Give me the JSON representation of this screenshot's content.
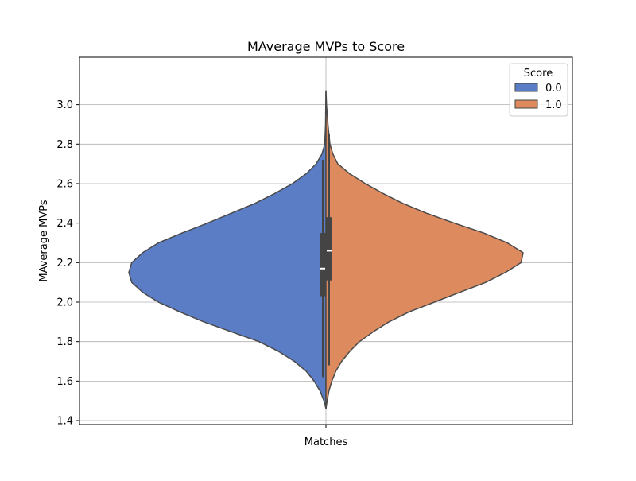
{
  "chart_data": {
    "type": "violin",
    "title": "MAverage MVPs to Score",
    "xlabel": "",
    "ylabel": "MAverage MVPs",
    "categories": [
      "Matches"
    ],
    "ylim": [
      1.38,
      3.24
    ],
    "yticks": [
      1.4,
      1.6,
      1.8,
      2.0,
      2.2,
      2.4,
      2.6,
      2.8,
      3.0
    ],
    "ytick_labels": [
      "1.4",
      "1.6",
      "1.8",
      "2.0",
      "2.2",
      "2.4",
      "2.6",
      "2.8",
      "3.0"
    ],
    "grid": true,
    "split": true,
    "legend": {
      "title": "Score",
      "placement": "top-right"
    },
    "series": [
      {
        "name": "0.0",
        "color": "#5a7dc5",
        "side": "left",
        "density_profile": [
          [
            1.46,
            0.0
          ],
          [
            1.5,
            0.01
          ],
          [
            1.55,
            0.03
          ],
          [
            1.6,
            0.06
          ],
          [
            1.65,
            0.1
          ],
          [
            1.7,
            0.16
          ],
          [
            1.75,
            0.24
          ],
          [
            1.8,
            0.34
          ],
          [
            1.85,
            0.48
          ],
          [
            1.9,
            0.62
          ],
          [
            1.95,
            0.74
          ],
          [
            2.0,
            0.85
          ],
          [
            2.05,
            0.93
          ],
          [
            2.1,
            0.985
          ],
          [
            2.15,
            1.0
          ],
          [
            2.2,
            0.985
          ],
          [
            2.25,
            0.93
          ],
          [
            2.3,
            0.85
          ],
          [
            2.35,
            0.73
          ],
          [
            2.4,
            0.6
          ],
          [
            2.45,
            0.48
          ],
          [
            2.5,
            0.36
          ],
          [
            2.55,
            0.26
          ],
          [
            2.6,
            0.17
          ],
          [
            2.65,
            0.1
          ],
          [
            2.7,
            0.05
          ],
          [
            2.75,
            0.02
          ],
          [
            2.8,
            0.006
          ],
          [
            2.9,
            0.002
          ],
          [
            3.07,
            0.0
          ]
        ],
        "box": {
          "q1": 2.03,
          "median": 2.17,
          "q3": 2.35,
          "whisker_low": 1.62,
          "whisker_high": 2.72
        }
      },
      {
        "name": "1.0",
        "color": "#dc8a5e",
        "side": "right",
        "density_profile": [
          [
            1.46,
            0.0
          ],
          [
            1.5,
            0.006
          ],
          [
            1.55,
            0.015
          ],
          [
            1.6,
            0.03
          ],
          [
            1.65,
            0.05
          ],
          [
            1.7,
            0.08
          ],
          [
            1.75,
            0.12
          ],
          [
            1.8,
            0.17
          ],
          [
            1.85,
            0.24
          ],
          [
            1.9,
            0.32
          ],
          [
            1.95,
            0.42
          ],
          [
            2.0,
            0.55
          ],
          [
            2.05,
            0.68
          ],
          [
            2.1,
            0.81
          ],
          [
            2.15,
            0.91
          ],
          [
            2.2,
            0.99
          ],
          [
            2.25,
            1.0
          ],
          [
            2.3,
            0.92
          ],
          [
            2.35,
            0.8
          ],
          [
            2.4,
            0.65
          ],
          [
            2.45,
            0.51
          ],
          [
            2.5,
            0.39
          ],
          [
            2.55,
            0.29
          ],
          [
            2.6,
            0.2
          ],
          [
            2.65,
            0.12
          ],
          [
            2.7,
            0.06
          ],
          [
            2.75,
            0.035
          ],
          [
            2.8,
            0.02
          ],
          [
            2.9,
            0.01
          ],
          [
            3.0,
            0.003
          ],
          [
            3.07,
            0.0
          ]
        ],
        "box": {
          "q1": 2.11,
          "median": 2.26,
          "q3": 2.43,
          "whisker_low": 1.68,
          "whisker_high": 2.85
        }
      }
    ]
  }
}
